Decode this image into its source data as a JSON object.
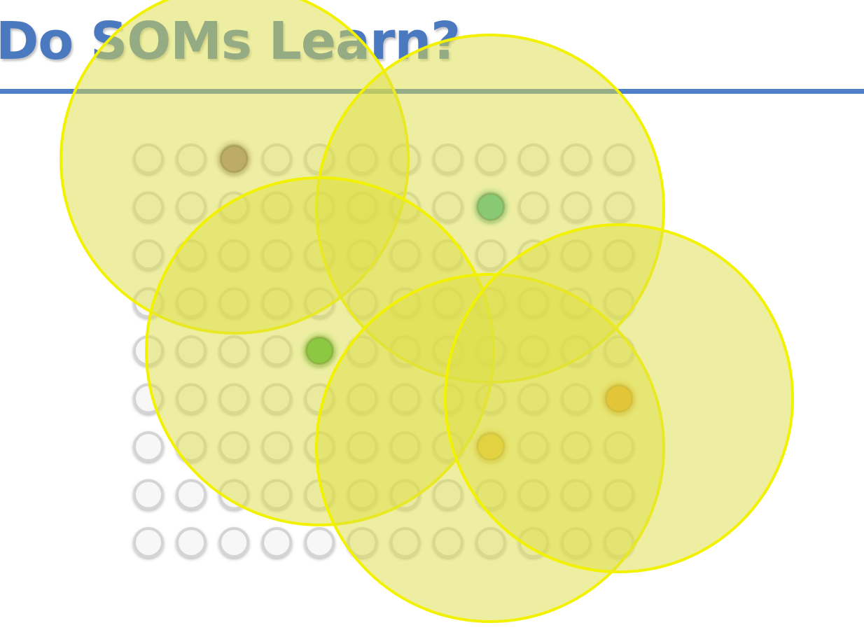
{
  "slide": {
    "title": "Do SOMs Learn?"
  },
  "som_grid": {
    "rows": 9,
    "cols": 12,
    "node_fill": "#f7f7f7",
    "node_stroke": "#d4d4d4"
  },
  "winning_nodes": [
    {
      "name": "winning-node-purple",
      "row": 0,
      "col": 2,
      "color": "#9a7b87"
    },
    {
      "name": "winning-node-teal",
      "row": 1,
      "col": 8,
      "color": "#35b5a0"
    },
    {
      "name": "winning-node-green",
      "row": 4,
      "col": 4,
      "color": "#3db33d"
    },
    {
      "name": "winning-node-orange",
      "row": 5,
      "col": 11,
      "color": "#f07d0a"
    },
    {
      "name": "winning-node-amber",
      "row": 6,
      "col": 8,
      "color": "#f0b030"
    }
  ],
  "neighborhoods": [
    {
      "name": "neighborhood-circle-1"
    },
    {
      "name": "neighborhood-circle-2"
    },
    {
      "name": "neighborhood-circle-3"
    },
    {
      "name": "neighborhood-circle-4"
    },
    {
      "name": "neighborhood-circle-5"
    }
  ],
  "colors": {
    "title": "#4a79c0",
    "rule": "#4f7fc8",
    "neighborhood_fill": "#dede48",
    "neighborhood_stroke": "#f2f200"
  }
}
